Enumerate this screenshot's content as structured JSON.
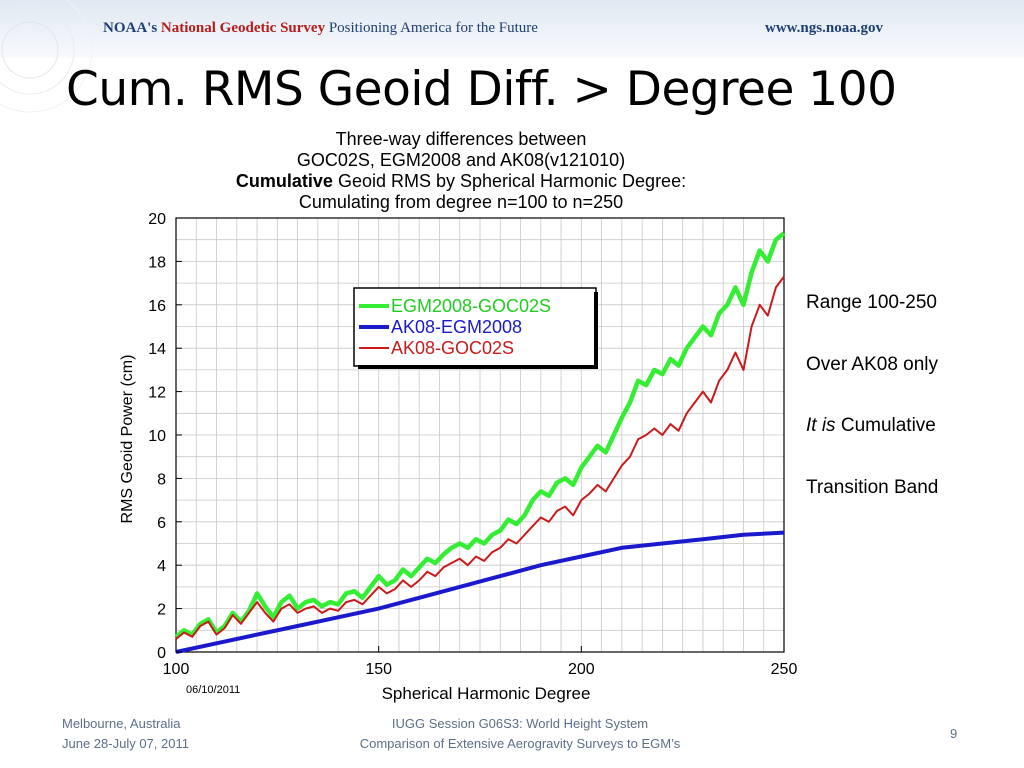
{
  "banner": {
    "agency": "NOAA's",
    "survey": "National Geodetic Survey",
    "tagline": "Positioning America for the Future",
    "url": "www.ngs.noaa.gov"
  },
  "slide": {
    "title": "Cum. RMS Geoid Diff. > Degree 100",
    "page_number": "9"
  },
  "side_notes": {
    "line1": "Range 100-250",
    "line2": "Over AK08 only",
    "line3_italic": "It is",
    "line3_rest": " Cumulative",
    "line4": "Transition Band"
  },
  "footer": {
    "location": "Melbourne, Australia",
    "dates": "June 28-July 07, 2011",
    "session": "IUGG Session G06S3: World Height System",
    "talk": "Comparison of Extensive Aerogravity Surveys to EGM’s"
  },
  "chart_data": {
    "type": "line",
    "title_lines": [
      "Three-way differences between",
      "GOC02S, EGM2008 and AK08(v121010)",
      "Cumulating from degree n=100 to n=250"
    ],
    "title_bold": "Cumulative",
    "title_rest": " Geoid RMS by Spherical Harmonic Degree:",
    "xlabel": "Spherical Harmonic Degree",
    "ylabel": "RMS Geoid Power (cm)",
    "date_stamp": "06/10/2011",
    "xlim": [
      100,
      250
    ],
    "ylim": [
      0,
      20
    ],
    "x_ticks": [
      100,
      150,
      200,
      250
    ],
    "y_ticks": [
      0,
      2,
      4,
      6,
      8,
      10,
      12,
      14,
      16,
      18,
      20
    ],
    "grid": true,
    "legend_placement": "upper-left-center",
    "series": [
      {
        "name": "EGM2008-GOC02S",
        "color": "#33ee33",
        "points": [
          [
            100,
            0.7
          ],
          [
            102,
            1.0
          ],
          [
            104,
            0.8
          ],
          [
            106,
            1.3
          ],
          [
            108,
            1.5
          ],
          [
            110,
            0.9
          ],
          [
            112,
            1.2
          ],
          [
            114,
            1.8
          ],
          [
            116,
            1.4
          ],
          [
            118,
            1.9
          ],
          [
            120,
            2.7
          ],
          [
            122,
            2.1
          ],
          [
            124,
            1.6
          ],
          [
            126,
            2.3
          ],
          [
            128,
            2.6
          ],
          [
            130,
            2.0
          ],
          [
            132,
            2.3
          ],
          [
            134,
            2.4
          ],
          [
            136,
            2.1
          ],
          [
            138,
            2.3
          ],
          [
            140,
            2.2
          ],
          [
            142,
            2.7
          ],
          [
            144,
            2.8
          ],
          [
            146,
            2.5
          ],
          [
            148,
            3.0
          ],
          [
            150,
            3.5
          ],
          [
            152,
            3.1
          ],
          [
            154,
            3.3
          ],
          [
            156,
            3.8
          ],
          [
            158,
            3.5
          ],
          [
            160,
            3.9
          ],
          [
            162,
            4.3
          ],
          [
            164,
            4.1
          ],
          [
            166,
            4.5
          ],
          [
            168,
            4.8
          ],
          [
            170,
            5.0
          ],
          [
            172,
            4.8
          ],
          [
            174,
            5.2
          ],
          [
            176,
            5.0
          ],
          [
            178,
            5.4
          ],
          [
            180,
            5.6
          ],
          [
            182,
            6.1
          ],
          [
            184,
            5.9
          ],
          [
            186,
            6.3
          ],
          [
            188,
            7.0
          ],
          [
            190,
            7.4
          ],
          [
            192,
            7.2
          ],
          [
            194,
            7.8
          ],
          [
            196,
            8.0
          ],
          [
            198,
            7.7
          ],
          [
            200,
            8.5
          ],
          [
            202,
            9.0
          ],
          [
            204,
            9.5
          ],
          [
            206,
            9.2
          ],
          [
            208,
            10.0
          ],
          [
            210,
            10.8
          ],
          [
            212,
            11.5
          ],
          [
            214,
            12.5
          ],
          [
            216,
            12.3
          ],
          [
            218,
            13.0
          ],
          [
            220,
            12.8
          ],
          [
            222,
            13.5
          ],
          [
            224,
            13.2
          ],
          [
            226,
            14.0
          ],
          [
            228,
            14.5
          ],
          [
            230,
            15.0
          ],
          [
            232,
            14.6
          ],
          [
            234,
            15.6
          ],
          [
            236,
            16.0
          ],
          [
            238,
            16.8
          ],
          [
            240,
            16.0
          ],
          [
            242,
            17.5
          ],
          [
            244,
            18.5
          ],
          [
            246,
            18.0
          ],
          [
            248,
            19.0
          ],
          [
            250,
            19.3
          ]
        ]
      },
      {
        "name": "AK08-EGM2008",
        "color": "#1a1acc",
        "points": [
          [
            100,
            0.0
          ],
          [
            110,
            0.4
          ],
          [
            120,
            0.8
          ],
          [
            130,
            1.2
          ],
          [
            140,
            1.6
          ],
          [
            150,
            2.0
          ],
          [
            160,
            2.5
          ],
          [
            170,
            3.0
          ],
          [
            180,
            3.5
          ],
          [
            190,
            4.0
          ],
          [
            200,
            4.4
          ],
          [
            210,
            4.8
          ],
          [
            220,
            5.0
          ],
          [
            230,
            5.2
          ],
          [
            240,
            5.4
          ],
          [
            250,
            5.5
          ]
        ]
      },
      {
        "name": "AK08-GOC02S",
        "color": "#cc1a1a",
        "points": [
          [
            100,
            0.6
          ],
          [
            102,
            0.9
          ],
          [
            104,
            0.7
          ],
          [
            106,
            1.2
          ],
          [
            108,
            1.4
          ],
          [
            110,
            0.8
          ],
          [
            112,
            1.1
          ],
          [
            114,
            1.7
          ],
          [
            116,
            1.3
          ],
          [
            118,
            1.8
          ],
          [
            120,
            2.3
          ],
          [
            122,
            1.8
          ],
          [
            124,
            1.4
          ],
          [
            126,
            2.0
          ],
          [
            128,
            2.2
          ],
          [
            130,
            1.8
          ],
          [
            132,
            2.0
          ],
          [
            134,
            2.1
          ],
          [
            136,
            1.8
          ],
          [
            138,
            2.0
          ],
          [
            140,
            1.9
          ],
          [
            142,
            2.3
          ],
          [
            144,
            2.4
          ],
          [
            146,
            2.2
          ],
          [
            148,
            2.6
          ],
          [
            150,
            3.0
          ],
          [
            152,
            2.7
          ],
          [
            154,
            2.9
          ],
          [
            156,
            3.3
          ],
          [
            158,
            3.0
          ],
          [
            160,
            3.3
          ],
          [
            162,
            3.7
          ],
          [
            164,
            3.5
          ],
          [
            166,
            3.9
          ],
          [
            168,
            4.1
          ],
          [
            170,
            4.3
          ],
          [
            172,
            4.0
          ],
          [
            174,
            4.4
          ],
          [
            176,
            4.2
          ],
          [
            178,
            4.6
          ],
          [
            180,
            4.8
          ],
          [
            182,
            5.2
          ],
          [
            184,
            5.0
          ],
          [
            186,
            5.4
          ],
          [
            188,
            5.8
          ],
          [
            190,
            6.2
          ],
          [
            192,
            6.0
          ],
          [
            194,
            6.5
          ],
          [
            196,
            6.7
          ],
          [
            198,
            6.3
          ],
          [
            200,
            7.0
          ],
          [
            202,
            7.3
          ],
          [
            204,
            7.7
          ],
          [
            206,
            7.4
          ],
          [
            208,
            8.0
          ],
          [
            210,
            8.6
          ],
          [
            212,
            9.0
          ],
          [
            214,
            9.8
          ],
          [
            216,
            10.0
          ],
          [
            218,
            10.3
          ],
          [
            220,
            10.0
          ],
          [
            222,
            10.5
          ],
          [
            224,
            10.2
          ],
          [
            226,
            11.0
          ],
          [
            228,
            11.5
          ],
          [
            230,
            12.0
          ],
          [
            232,
            11.5
          ],
          [
            234,
            12.5
          ],
          [
            236,
            13.0
          ],
          [
            238,
            13.8
          ],
          [
            240,
            13.0
          ],
          [
            242,
            15.0
          ],
          [
            244,
            16.0
          ],
          [
            246,
            15.5
          ],
          [
            248,
            16.8
          ],
          [
            250,
            17.3
          ]
        ]
      }
    ]
  }
}
